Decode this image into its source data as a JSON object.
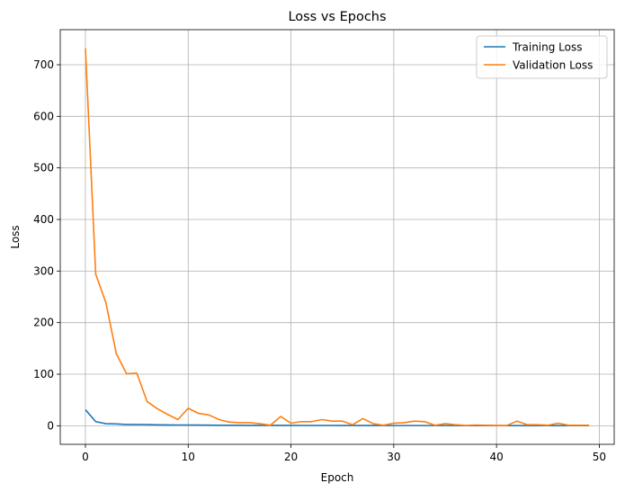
{
  "chart_data": {
    "type": "line",
    "title": "Loss vs Epochs",
    "xlabel": "Epoch",
    "ylabel": "Loss",
    "xlim": [
      -2.45,
      51.45
    ],
    "ylim": [
      -36,
      768
    ],
    "xticks": [
      0,
      10,
      20,
      30,
      40,
      50
    ],
    "yticks": [
      0,
      100,
      200,
      300,
      400,
      500,
      600,
      700
    ],
    "grid": true,
    "legend_position": "top-right",
    "x": [
      0,
      1,
      2,
      3,
      4,
      5,
      6,
      7,
      8,
      9,
      10,
      11,
      12,
      13,
      14,
      15,
      16,
      17,
      18,
      19,
      20,
      21,
      22,
      23,
      24,
      25,
      26,
      27,
      28,
      29,
      30,
      31,
      32,
      33,
      34,
      35,
      36,
      37,
      38,
      39,
      40,
      41,
      42,
      43,
      44,
      45,
      46,
      47,
      48,
      49
    ],
    "series": [
      {
        "name": "Training Loss",
        "color": "#1f77b4",
        "values": [
          31,
          8,
          4,
          3.5,
          2.5,
          2.5,
          2.2,
          1.8,
          1.6,
          1.5,
          1.5,
          1.3,
          1.1,
          1,
          0.9,
          0.9,
          0.8,
          0.8,
          0.7,
          0.7,
          0.7,
          0.6,
          0.6,
          0.6,
          0.6,
          0.5,
          0.5,
          0.5,
          0.5,
          0.5,
          0.4,
          0.4,
          0.4,
          0.4,
          0.4,
          0.4,
          0.4,
          0.3,
          0.3,
          0.3,
          0.3,
          0.3,
          0.3,
          0.3,
          0.3,
          0.3,
          0.3,
          0.3,
          0.3,
          0.3
        ]
      },
      {
        "name": "Validation Loss",
        "color": "#ff7f0e",
        "values": [
          732,
          294,
          238,
          140,
          101,
          102,
          47,
          33,
          22,
          12,
          34,
          24,
          21,
          12,
          7,
          6,
          6,
          4,
          1,
          18,
          5,
          8,
          8,
          12,
          9,
          9,
          2,
          14,
          4,
          1,
          5,
          6,
          9,
          8,
          1,
          4,
          2,
          0.5,
          1.5,
          1,
          0.5,
          0.5,
          9,
          2,
          2,
          1,
          5,
          1,
          1,
          1
        ]
      }
    ]
  }
}
